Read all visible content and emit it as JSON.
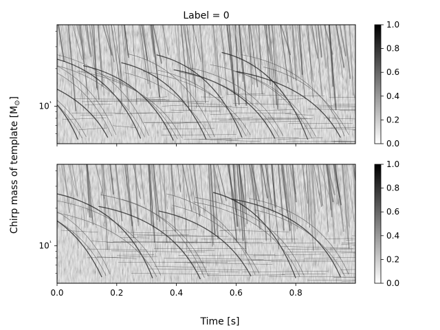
{
  "figure": {
    "title": "Label = 0",
    "xlabel": "Time [s]",
    "ylabel": "Chirp mass of template [M",
    "ylabel_sub": "⊙",
    "ylabel_end": "]"
  },
  "chart_data": [
    {
      "type": "heatmap",
      "panel": "top",
      "title": "Label = 0",
      "xlabel": "",
      "ylabel": "",
      "xlim": [
        0.0,
        1.0
      ],
      "ylim": [
        5,
        45
      ],
      "yscale": "log",
      "xticks": [
        0.0,
        0.2,
        0.4,
        0.6,
        0.8
      ],
      "xtick_labels_visible": false,
      "yticks_major": [
        10
      ],
      "ytick_labels": [
        "10¹"
      ],
      "colormap": "gray_r",
      "colorbar": {
        "range": [
          0.0,
          1.0
        ],
        "ticks": [
          0.0,
          0.2,
          0.4,
          0.6,
          0.8,
          1.0
        ],
        "tick_labels": [
          "0.0",
          "0.2",
          "0.4",
          "0.6",
          "0.8",
          "1.0"
        ]
      },
      "tracks": [
        {
          "t": 0.07,
          "m": 5.4
        },
        {
          "t": 0.17,
          "m": 5.6
        },
        {
          "t": 0.28,
          "m": 5.5
        },
        {
          "t": 0.39,
          "m": 5.3
        },
        {
          "t": 0.5,
          "m": 5.4
        },
        {
          "t": 0.62,
          "m": 5.6
        },
        {
          "t": 0.73,
          "m": 5.5
        },
        {
          "t": 0.84,
          "m": 5.4
        },
        {
          "t": 0.95,
          "m": 5.6
        }
      ]
    },
    {
      "type": "heatmap",
      "panel": "bottom",
      "title": "",
      "xlabel": "Time [s]",
      "ylabel": "",
      "xlim": [
        0.0,
        1.0
      ],
      "ylim": [
        5,
        45
      ],
      "yscale": "log",
      "xticks": [
        0.0,
        0.2,
        0.4,
        0.6,
        0.8
      ],
      "xtick_labels": [
        "0.0",
        "0.2",
        "0.4",
        "0.6",
        "0.8"
      ],
      "yticks_major": [
        10
      ],
      "ytick_labels": [
        "10¹"
      ],
      "colormap": "gray_r",
      "colorbar": {
        "range": [
          0.0,
          1.0
        ],
        "ticks": [
          0.0,
          0.2,
          0.4,
          0.6,
          0.8,
          1.0
        ],
        "tick_labels": [
          "0.0",
          "0.2",
          "0.4",
          "0.6",
          "0.8",
          "1.0"
        ]
      },
      "tracks": [
        {
          "t": 0.15,
          "m": 5.6
        },
        {
          "t": 0.32,
          "m": 5.5
        },
        {
          "t": 0.48,
          "m": 5.4
        },
        {
          "t": 0.65,
          "m": 5.7
        },
        {
          "t": 0.8,
          "m": 5.5
        },
        {
          "t": 0.95,
          "m": 5.6
        }
      ]
    }
  ]
}
